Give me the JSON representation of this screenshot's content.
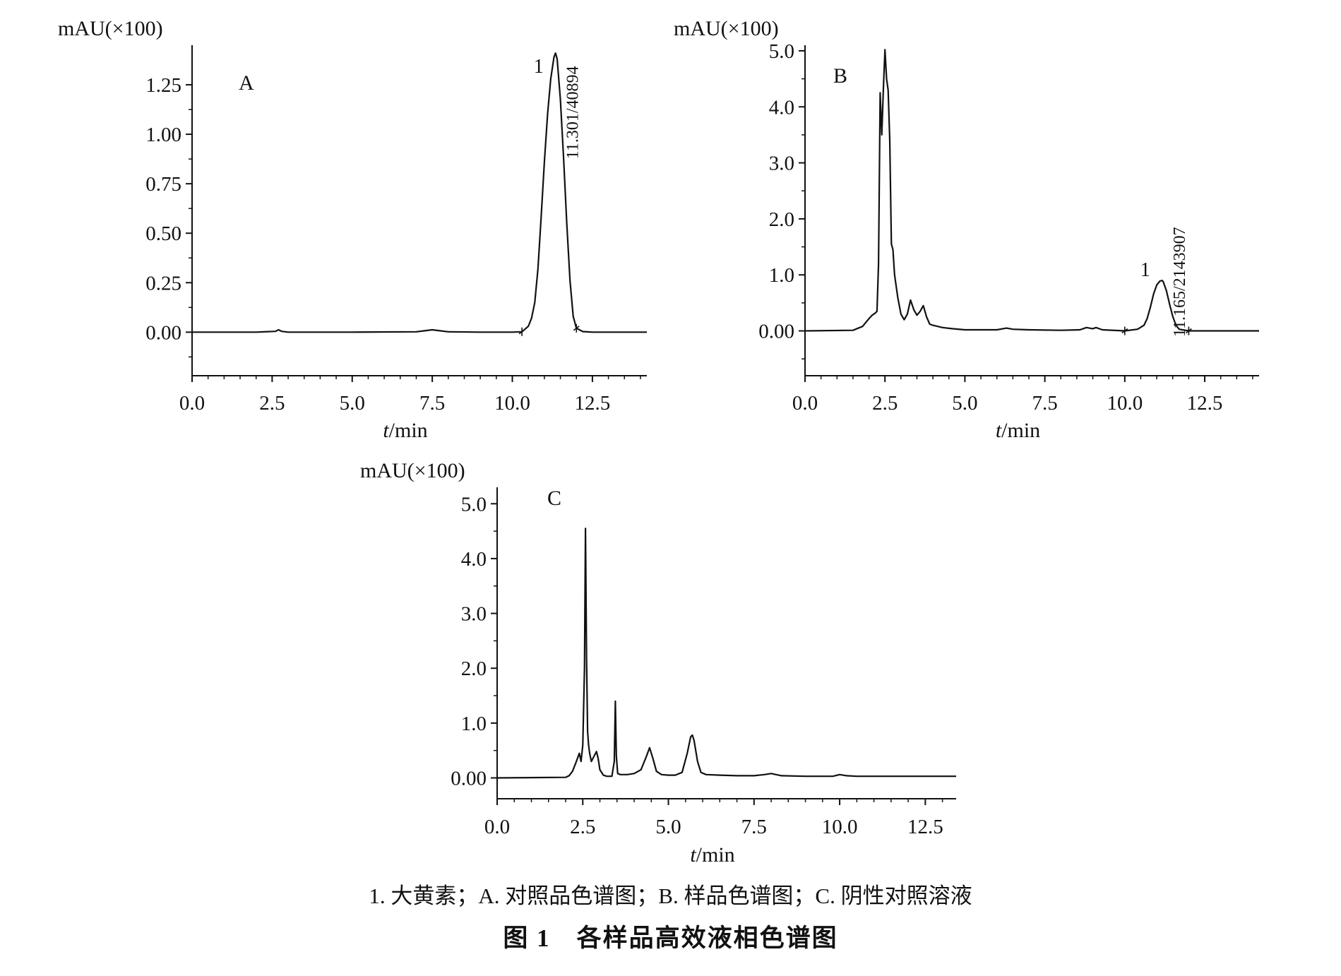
{
  "chart_data": [
    {
      "type": "line",
      "panel_label": "A",
      "ylabel": "mAU(×100)",
      "xlabel": "t/min",
      "xlim": [
        0,
        14.2
      ],
      "ylim": [
        -0.22,
        1.45
      ],
      "xticks": [
        "0.0",
        "2.5",
        "5.0",
        "7.5",
        "10.0",
        "12.5"
      ],
      "xtick_values": [
        0,
        2.5,
        5,
        7.5,
        10,
        12.5
      ],
      "yticks": [
        "0.00",
        "0.25",
        "0.50",
        "0.75",
        "1.00",
        "1.25"
      ],
      "ytick_values": [
        0,
        0.25,
        0.5,
        0.75,
        1.0,
        1.25
      ],
      "series": [
        {
          "x": [
            0.0,
            2.0,
            2.6,
            2.7,
            2.8,
            3.0,
            5.0,
            7.0,
            7.3,
            7.5,
            7.7,
            8.0,
            9.0,
            10.0,
            10.3,
            10.5,
            10.6,
            10.7,
            10.8,
            10.9,
            11.0,
            11.1,
            11.2,
            11.3,
            11.35,
            11.4,
            11.5,
            11.6,
            11.7,
            11.8,
            11.9,
            12.0,
            12.2,
            12.5,
            13.5,
            14.2
          ],
          "y": [
            0.0,
            0.0,
            0.004,
            0.012,
            0.004,
            0.0,
            0.0,
            0.002,
            0.008,
            0.012,
            0.008,
            0.002,
            0.0,
            0.0,
            0.002,
            0.03,
            0.07,
            0.15,
            0.32,
            0.58,
            0.86,
            1.1,
            1.28,
            1.39,
            1.41,
            1.38,
            1.18,
            0.88,
            0.55,
            0.26,
            0.08,
            0.02,
            0.003,
            0.0,
            0.0,
            0.0
          ]
        }
      ],
      "peak_number": "1",
      "peak_annotation": "11.301/40894"
    },
    {
      "type": "line",
      "panel_label": "B",
      "ylabel": "mAU(×100)",
      "xlabel": "t/min",
      "xlim": [
        0,
        14.2
      ],
      "ylim": [
        -0.8,
        5.1
      ],
      "xticks": [
        "0.0",
        "2.5",
        "5.0",
        "7.5",
        "10.0",
        "12.5"
      ],
      "xtick_values": [
        0,
        2.5,
        5,
        7.5,
        10,
        12.5
      ],
      "yticks": [
        "0.00",
        "1.0",
        "2.0",
        "3.0",
        "4.0",
        "5.0"
      ],
      "ytick_values": [
        0,
        1,
        2,
        3,
        4,
        5
      ],
      "series": [
        {
          "x": [
            0.0,
            1.5,
            1.8,
            2.0,
            2.1,
            2.2,
            2.25,
            2.3,
            2.35,
            2.4,
            2.45,
            2.5,
            2.55,
            2.6,
            2.65,
            2.7,
            2.75,
            2.8,
            2.9,
            3.0,
            3.1,
            3.2,
            3.3,
            3.4,
            3.5,
            3.6,
            3.7,
            3.8,
            3.9,
            4.0,
            4.3,
            4.6,
            5.0,
            6.0,
            6.3,
            6.5,
            7.0,
            8.0,
            8.6,
            8.8,
            9.0,
            9.1,
            9.3,
            10.0,
            10.4,
            10.6,
            10.7,
            10.8,
            10.9,
            11.0,
            11.1,
            11.17,
            11.2,
            11.3,
            11.4,
            11.5,
            11.6,
            11.7,
            12.0,
            13.0,
            14.2
          ],
          "y": [
            0.0,
            0.01,
            0.08,
            0.22,
            0.28,
            0.32,
            0.35,
            1.2,
            4.25,
            3.5,
            4.3,
            5.02,
            4.5,
            4.3,
            3.4,
            1.55,
            1.45,
            1.0,
            0.6,
            0.3,
            0.2,
            0.3,
            0.55,
            0.38,
            0.28,
            0.35,
            0.45,
            0.25,
            0.12,
            0.1,
            0.06,
            0.04,
            0.02,
            0.02,
            0.05,
            0.03,
            0.02,
            0.01,
            0.02,
            0.06,
            0.04,
            0.06,
            0.02,
            0.0,
            0.03,
            0.1,
            0.22,
            0.42,
            0.66,
            0.82,
            0.89,
            0.9,
            0.88,
            0.72,
            0.48,
            0.26,
            0.1,
            0.03,
            0.0,
            0.0,
            0.0
          ]
        }
      ],
      "peak_number": "1",
      "peak_annotation": "11.165/2143907"
    },
    {
      "type": "line",
      "panel_label": "C",
      "ylabel": "mAU(×100)",
      "xlabel": "t/min",
      "xlim": [
        0,
        13.4
      ],
      "ylim": [
        -0.38,
        5.3
      ],
      "xticks": [
        "0.0",
        "2.5",
        "5.0",
        "7.5",
        "10.0",
        "12.5"
      ],
      "xtick_values": [
        0,
        2.5,
        5,
        7.5,
        10,
        12.5
      ],
      "yticks": [
        "0.00",
        "1.0",
        "2.0",
        "3.0",
        "4.0",
        "5.0"
      ],
      "ytick_values": [
        0,
        1,
        2,
        3,
        4,
        5
      ],
      "series": [
        {
          "x": [
            0.0,
            2.0,
            2.1,
            2.2,
            2.3,
            2.4,
            2.45,
            2.5,
            2.55,
            2.58,
            2.61,
            2.64,
            2.67,
            2.7,
            2.75,
            2.85,
            2.9,
            2.95,
            3.0,
            3.1,
            3.2,
            3.35,
            3.42,
            3.45,
            3.48,
            3.52,
            3.6,
            3.8,
            4.0,
            4.2,
            4.35,
            4.45,
            4.55,
            4.65,
            4.8,
            5.0,
            5.2,
            5.4,
            5.55,
            5.65,
            5.7,
            5.75,
            5.85,
            5.95,
            6.1,
            6.5,
            7.0,
            7.5,
            7.8,
            8.0,
            8.3,
            9.0,
            9.8,
            10.0,
            10.2,
            10.5,
            11.0,
            12.0,
            13.4
          ],
          "y": [
            0.0,
            0.01,
            0.04,
            0.12,
            0.28,
            0.45,
            0.3,
            0.6,
            2.0,
            4.55,
            2.2,
            0.85,
            0.6,
            0.45,
            0.3,
            0.42,
            0.48,
            0.35,
            0.15,
            0.05,
            0.03,
            0.03,
            0.3,
            1.4,
            0.4,
            0.08,
            0.06,
            0.06,
            0.08,
            0.15,
            0.38,
            0.55,
            0.35,
            0.12,
            0.06,
            0.05,
            0.05,
            0.1,
            0.45,
            0.75,
            0.78,
            0.68,
            0.3,
            0.1,
            0.06,
            0.05,
            0.04,
            0.04,
            0.06,
            0.08,
            0.04,
            0.03,
            0.03,
            0.06,
            0.04,
            0.03,
            0.03,
            0.03,
            0.03
          ]
        }
      ]
    }
  ],
  "caption": {
    "note": "1. 大黄素；A. 对照品色谱图；B. 样品色谱图；C. 阴性对照溶液",
    "title": "图 1　各样品高效液相色谱图"
  }
}
